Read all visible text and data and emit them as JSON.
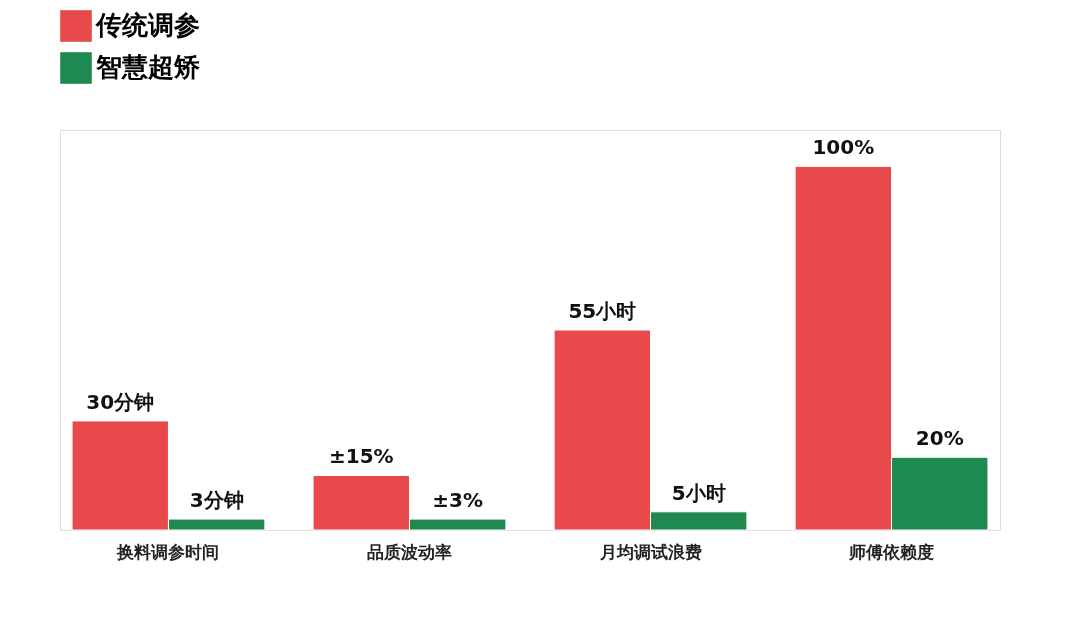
{
  "chart_data": {
    "type": "bar",
    "categories": [
      "换料调参时间",
      "品质波动率",
      "月均调试浪费",
      "师傅依赖度"
    ],
    "series": [
      {
        "name": "传统调参",
        "color": "#e8494b",
        "values": [
          30,
          15,
          55,
          100
        ],
        "value_labels": [
          "30分钟",
          "±15%",
          "55小时",
          "100%"
        ]
      },
      {
        "name": "智慧超矫",
        "color": "#1f8a50",
        "values": [
          3,
          3,
          5,
          20
        ],
        "value_labels": [
          "3分钟",
          "±3%",
          "5小时",
          "20%"
        ]
      }
    ],
    "legend": "top left"
  }
}
